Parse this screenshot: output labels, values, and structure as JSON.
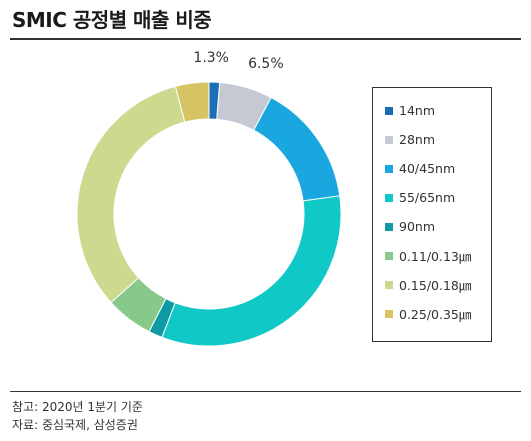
{
  "header": {
    "title": "SMIC 공정별 매출 비중"
  },
  "chart_data": {
    "type": "pie",
    "donut": true,
    "categories": [
      "14nm",
      "28nm",
      "40/45nm",
      "55/65nm",
      "90nm",
      "0.11/0.13㎛",
      "0.15/0.18㎛",
      "0.25/0.35㎛"
    ],
    "values": [
      1.3,
      6.5,
      15.0,
      33.0,
      1.7,
      5.8,
      32.6,
      4.1
    ],
    "colors": [
      "#1a6fb8",
      "#c4c9d4",
      "#1aa7df",
      "#10c8c6",
      "#0e9aa4",
      "#86c98a",
      "#cdd98f",
      "#d6c462"
    ],
    "data_labels": [
      "1.3%",
      "6.5%",
      "",
      "",
      "",
      "",
      "",
      ""
    ],
    "legend_position": "right"
  },
  "legend_items": [
    {
      "label": "14nm",
      "color": "#1a6fb8"
    },
    {
      "label": "28nm",
      "color": "#c4c9d4"
    },
    {
      "label": "40/45nm",
      "color": "#1aa7df"
    },
    {
      "label": "55/65nm",
      "color": "#10c8c6"
    },
    {
      "label": "90nm",
      "color": "#0e9aa4"
    },
    {
      "label": "0.11/0.13㎛",
      "color": "#86c98a"
    },
    {
      "label": "0.15/0.18㎛",
      "color": "#cdd98f"
    },
    {
      "label": "0.25/0.35㎛",
      "color": "#d6c462"
    }
  ],
  "footer": {
    "note": "참고: 2020년 1분기 기준",
    "source": "자료: 중심국제, 삼성증권"
  }
}
